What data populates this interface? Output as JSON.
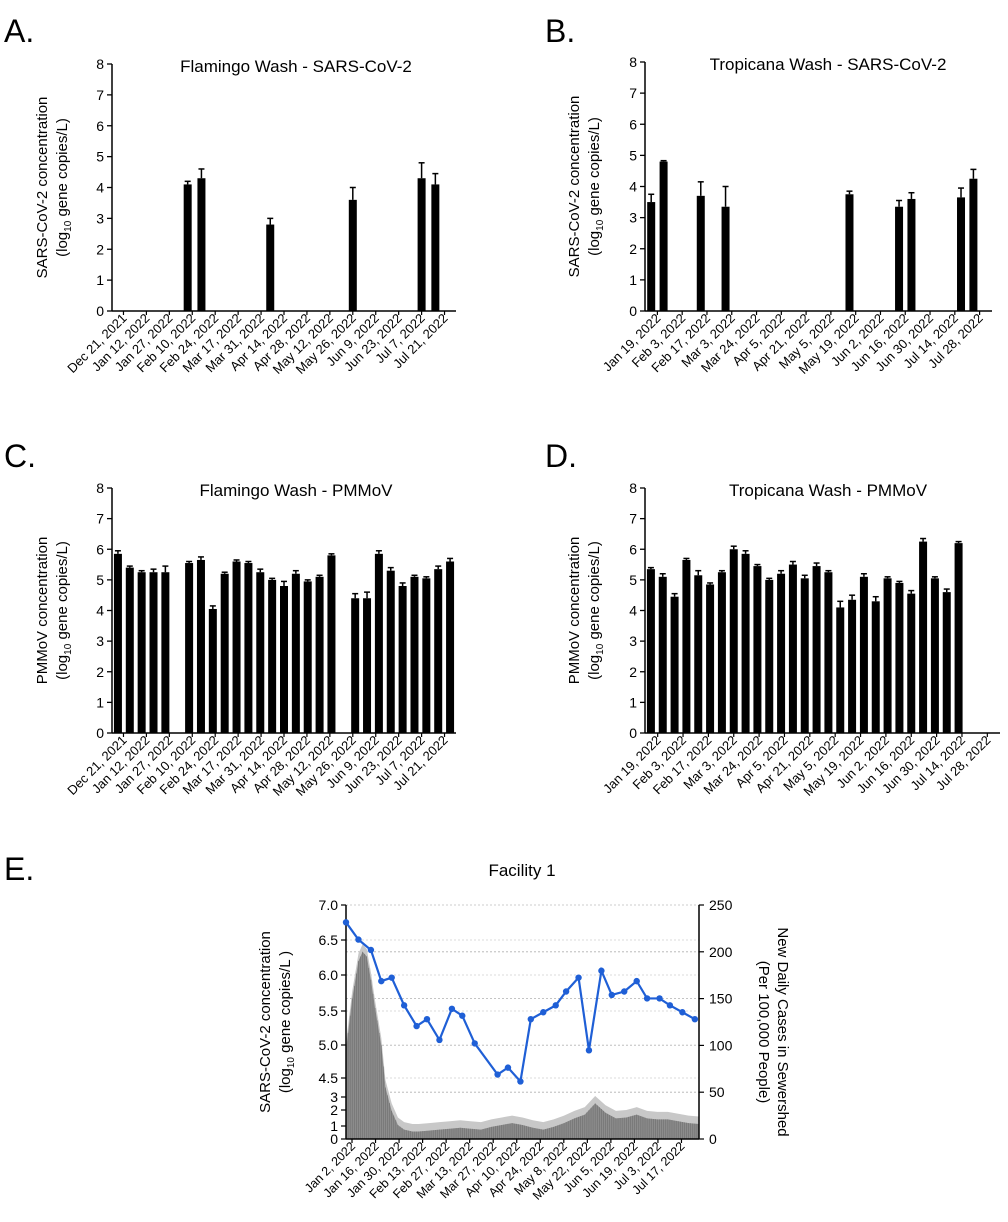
{
  "panel_letters": [
    "A.",
    "B.",
    "C.",
    "D.",
    "E."
  ],
  "chart_data": [
    {
      "id": "A",
      "type": "bar",
      "title": "Flamingo Wash - SARS-CoV-2",
      "ylabel": [
        "SARS-CoV-2  concentration",
        "(log",
        "10",
        " gene copies/L)"
      ],
      "ylim": [
        0,
        8
      ],
      "yticks": [
        0,
        1,
        2,
        3,
        4,
        5,
        6,
        7,
        8
      ],
      "xtick_labels": [
        "Dec 21, 2021",
        "Jan 12, 2022",
        "Jan 27, 2022",
        "Feb 10, 2022",
        "Feb 24, 2022",
        "Mar 17, 2022",
        "Mar 31, 2022",
        "Apr 14, 2022",
        "Apr 28, 2022",
        "May 12, 2022",
        "May 26, 2022",
        "Jun 9, 2022",
        "Jun 23, 2022",
        "Jul 7, 2022",
        "Jul 21, 2022"
      ],
      "n_slots": 25,
      "values": [
        0,
        0,
        0,
        0,
        0,
        4.1,
        4.3,
        0,
        0,
        0,
        0,
        2.8,
        0,
        0,
        0,
        0,
        0,
        3.6,
        0,
        0,
        0,
        0,
        4.3,
        4.1,
        0
      ],
      "errors": [
        0,
        0,
        0,
        0,
        0,
        0.1,
        0.3,
        0,
        0,
        0,
        0,
        0.2,
        0,
        0,
        0,
        0,
        0,
        0.4,
        0,
        0,
        0,
        0,
        0.5,
        0.35,
        0
      ]
    },
    {
      "id": "B",
      "type": "bar",
      "title": "Tropicana Wash - SARS-CoV-2",
      "ylabel": [
        "SARS-CoV-2 concentration",
        "(log",
        "10",
        " gene copies/L)"
      ],
      "ylim": [
        0,
        8
      ],
      "yticks": [
        0,
        1,
        2,
        3,
        4,
        5,
        6,
        7,
        8
      ],
      "xtick_labels": [
        "Jan 19, 2022",
        "Feb 3, 2022",
        "Feb 17, 2022",
        "Mar 3, 2022",
        "Mar 24, 2022",
        "Apr 5, 2022",
        "Apr 21, 2022",
        "May 5, 2022",
        "May 19, 2022",
        "Jun 2, 2022",
        "Jun 16, 2022",
        "Jun 30, 2022",
        "Jul 14, 2022",
        "Jul 28, 2022"
      ],
      "n_slots": 28,
      "values": [
        3.5,
        4.8,
        0,
        0,
        3.7,
        0,
        3.35,
        0,
        0,
        0,
        0,
        0,
        0,
        0,
        0,
        0,
        3.75,
        0,
        0,
        0,
        3.35,
        3.6,
        0,
        0,
        0,
        3.65,
        4.25,
        0
      ],
      "errors": [
        0.25,
        0.03,
        0,
        0,
        0.45,
        0,
        0.65,
        0,
        0,
        0,
        0,
        0,
        0,
        0,
        0,
        0,
        0.1,
        0,
        0,
        0,
        0.2,
        0.2,
        0,
        0,
        0,
        0.3,
        0.3,
        0
      ]
    },
    {
      "id": "C",
      "type": "bar",
      "title": "Flamingo Wash - PMMoV",
      "ylabel": [
        "PMMoV  concentration",
        "(log",
        "10",
        " gene copies/L)"
      ],
      "ylim": [
        0,
        8
      ],
      "yticks": [
        0,
        1,
        2,
        3,
        4,
        5,
        6,
        7,
        8
      ],
      "xtick_labels": [
        "Dec 21, 2021",
        "Jan 12, 2022",
        "Jan 27, 2022",
        "Feb 10, 2022",
        "Feb 24, 2022",
        "Mar 17, 2022",
        "Mar 31, 2022",
        "Apr 14, 2022",
        "Apr 28, 2022",
        "May 12, 2022",
        "May 26, 2022",
        "Jun 9, 2022",
        "Jun 23, 2022",
        "Jul 7, 2022",
        "Jul 21, 2022"
      ],
      "n_slots": 29,
      "values": [
        5.85,
        5.4,
        5.25,
        5.25,
        5.25,
        0,
        5.55,
        5.65,
        4.05,
        5.2,
        5.6,
        5.55,
        5.25,
        5.0,
        4.8,
        5.2,
        4.95,
        5.1,
        5.8,
        0,
        4.4,
        4.4,
        5.85,
        5.3,
        4.8,
        5.1,
        5.05,
        5.35,
        5.6
      ],
      "errors": [
        0.1,
        0.05,
        0.05,
        0.1,
        0.2,
        0,
        0.05,
        0.1,
        0.1,
        0.05,
        0.05,
        0.05,
        0.1,
        0.05,
        0.15,
        0.1,
        0.05,
        0.05,
        0.05,
        0,
        0.15,
        0.2,
        0.1,
        0.1,
        0.1,
        0.05,
        0.05,
        0.1,
        0.1
      ]
    },
    {
      "id": "D",
      "type": "bar",
      "title": "Tropicana Wash - PMMoV",
      "ylabel": [
        "PMMoV concentration",
        "(log",
        "10",
        " gene copies/L)"
      ],
      "ylim": [
        0,
        8
      ],
      "yticks": [
        0,
        1,
        2,
        3,
        4,
        5,
        6,
        7,
        8
      ],
      "xtick_labels": [
        "Jan 19, 2022",
        "Feb 3, 2022",
        "Feb 17, 2022",
        "Mar 3, 2022",
        "Mar 24, 2022",
        "Apr 5, 2022",
        "Apr 21, 2022",
        "May 5, 2022",
        "May 19, 2022",
        "Jun 2, 2022",
        "Jun 16, 2022",
        "Jun 30, 2022",
        "Jul 14, 2022",
        "Jul 28, 2022"
      ],
      "n_slots": 30,
      "values": [
        5.35,
        5.1,
        4.45,
        5.65,
        5.15,
        4.85,
        5.25,
        6.0,
        5.85,
        5.45,
        5.0,
        5.2,
        5.5,
        5.05,
        5.45,
        5.25,
        4.1,
        4.35,
        5.1,
        4.3,
        5.05,
        4.9,
        4.55,
        6.25,
        5.05,
        4.6,
        6.2,
        0,
        0,
        0
      ],
      "errors": [
        0.05,
        0.1,
        0.1,
        0.05,
        0.15,
        0.05,
        0.05,
        0.1,
        0.1,
        0.05,
        0.05,
        0.1,
        0.1,
        0.1,
        0.1,
        0.05,
        0.2,
        0.15,
        0.1,
        0.15,
        0.05,
        0.05,
        0.1,
        0.1,
        0.05,
        0.1,
        0.05,
        0,
        0,
        0
      ]
    },
    {
      "id": "E",
      "type": "line",
      "title": "Facility 1",
      "ylabel_left": [
        "SARS-CoV-2 concentration",
        "(log",
        "10",
        " gene copies/L )"
      ],
      "ylabel_right": [
        "New Daily Cases in Sewershed",
        "(Per 100,000 People)"
      ],
      "left_tick_labels": [
        "0",
        "1",
        "2",
        "3",
        "4.5",
        "5.0",
        "5.5",
        "6.0",
        "6.5",
        "7.0"
      ],
      "right_ticks": [
        0,
        50,
        100,
        150,
        200,
        250
      ],
      "right_ylim": [
        0,
        250
      ],
      "grid": true,
      "xtick_labels": [
        "Jan 2, 2022",
        "Jan 16, 2022",
        "Jan 30, 2022",
        "Feb 13, 2022",
        "Feb 27, 2022",
        "Mar 13, 2022",
        "Mar 27, 2022",
        "Apr 10, 2022",
        "Apr 24, 2022",
        "May 8, 2022",
        "May 22, 2022",
        "Jun 5, 2022",
        "Jun 19, 2022",
        "Jul 3, 2022",
        "Jul 17, 2022"
      ],
      "line_series": {
        "name": "SARS-CoV-2 concentration",
        "color": "#1f5fd6",
        "x_days": [
          0,
          6,
          12,
          17,
          22,
          28,
          34,
          39,
          45,
          51,
          56,
          62,
          73,
          78,
          84,
          89,
          95,
          101,
          106,
          112,
          117,
          123,
          128,
          134,
          140,
          145,
          151,
          156,
          162,
          168
        ],
        "y": [
          6.75,
          6.5,
          6.35,
          5.9,
          5.95,
          5.55,
          5.25,
          5.35,
          5.05,
          5.5,
          5.4,
          5.0,
          4.55,
          4.65,
          4.45,
          5.35,
          5.45,
          5.55,
          5.75,
          5.95,
          4.9,
          6.05,
          5.7,
          5.75,
          5.9,
          5.65,
          5.65,
          5.55,
          5.45,
          5.35
        ]
      },
      "cases_series": {
        "name": "New Daily Cases",
        "color": "#8c8c8c",
        "band_color": "#c8c8c8",
        "x_days": [
          0,
          3,
          6,
          8,
          10,
          12,
          14,
          17,
          19,
          22,
          25,
          28,
          32,
          35,
          40,
          45,
          50,
          55,
          60,
          65,
          70,
          75,
          80,
          85,
          90,
          95,
          100,
          105,
          110,
          115,
          120,
          125,
          130,
          135,
          140,
          145,
          150,
          155,
          160,
          165,
          170
        ],
        "y": [
          95,
          150,
          190,
          200,
          195,
          170,
          140,
          100,
          55,
          30,
          15,
          10,
          8,
          8,
          9,
          10,
          11,
          12,
          11,
          10,
          13,
          15,
          17,
          15,
          12,
          10,
          13,
          17,
          22,
          26,
          38,
          28,
          22,
          23,
          26,
          22,
          21,
          21,
          19,
          17,
          16
        ]
      }
    }
  ]
}
